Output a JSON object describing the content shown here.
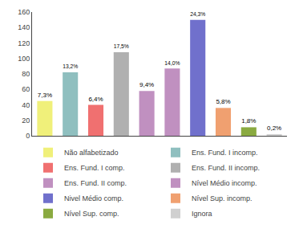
{
  "chart_data": {
    "type": "bar",
    "categories": [
      "Não alfabetizado",
      "Ens. Fund. I incomp.",
      "Ens. Fund. I comp.",
      "Ens. Fund. II incomp.",
      "Ens. Fund. II comp.",
      "Nível Médio incomp.",
      "Nivel Médio comp.",
      "Nível Sup. incomp.",
      "Nível Sup. comp.",
      "Ignora"
    ],
    "values": [
      45,
      82,
      40,
      108,
      58,
      87,
      150,
      36,
      11,
      1.5
    ],
    "percentages": [
      7.3,
      13.2,
      6.4,
      17.5,
      9.4,
      14.0,
      24.3,
      5.8,
      1.8,
      0.2
    ],
    "percentage_labels": [
      "7,3%",
      "13,2%",
      "6,4%",
      "17,5%",
      "9,4%",
      "14,0%",
      "24,3%",
      "5,8%",
      "1,8%",
      "0,2%"
    ],
    "colors": [
      "#f0f07a",
      "#8fbfbf",
      "#f07070",
      "#b0b0b0",
      "#c090c0",
      "#c090c0",
      "#7070cc",
      "#f0a070",
      "#8aaa40",
      "#d0d0d0"
    ],
    "ylim": [
      0,
      160
    ],
    "yticks": [
      0,
      20,
      40,
      60,
      80,
      100,
      120,
      140,
      160
    ],
    "grid": false,
    "legend": "bottom",
    "tick_labels": "y"
  }
}
